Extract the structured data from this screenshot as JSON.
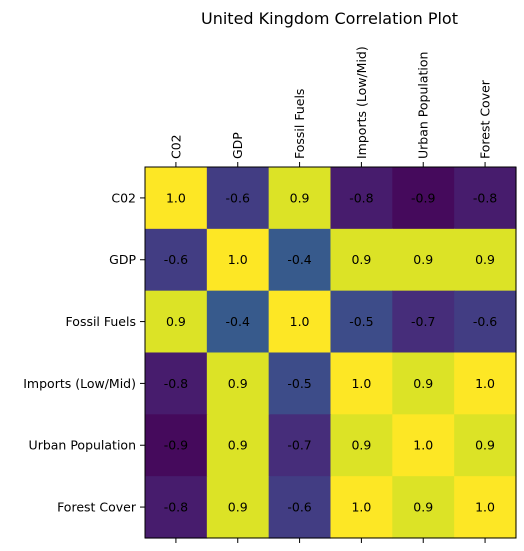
{
  "chart_data": {
    "type": "heatmap",
    "title": "United Kingdom Correlation Plot",
    "x_labels": [
      "C02",
      "GDP",
      "Fossil Fuels",
      "Imports (Low/Mid)",
      "Urban Population",
      "Forest Cover"
    ],
    "y_labels": [
      "C02",
      "GDP",
      "Fossil Fuels",
      "Imports (Low/Mid)",
      "Urban Population",
      "Forest Cover"
    ],
    "values": [
      [
        1.0,
        -0.6,
        0.9,
        -0.8,
        -0.9,
        -0.8
      ],
      [
        -0.6,
        1.0,
        -0.4,
        0.9,
        0.9,
        0.9
      ],
      [
        0.9,
        -0.4,
        1.0,
        -0.5,
        -0.7,
        -0.6
      ],
      [
        -0.8,
        0.9,
        -0.5,
        1.0,
        0.9,
        1.0
      ],
      [
        -0.9,
        0.9,
        -0.7,
        0.9,
        1.0,
        0.9
      ],
      [
        -0.8,
        0.9,
        -0.6,
        1.0,
        0.9,
        1.0
      ]
    ],
    "display_values": [
      [
        "1.0",
        "-0.6",
        "0.9",
        "-0.8",
        "-0.9",
        "-0.8"
      ],
      [
        "-0.6",
        "1.0",
        "-0.4",
        "0.9",
        "0.9",
        "0.9"
      ],
      [
        "0.9",
        "-0.4",
        "1.0",
        "-0.5",
        "-0.7",
        "-0.6"
      ],
      [
        "-0.8",
        "0.9",
        "-0.5",
        "1.0",
        "0.9",
        "1.0"
      ],
      [
        "-0.9",
        "0.9",
        "-0.7",
        "0.9",
        "1.0",
        "0.9"
      ],
      [
        "-0.8",
        "0.9",
        "-0.6",
        "1.0",
        "0.9",
        "1.0"
      ]
    ],
    "vmin": -0.95,
    "vmax": 1.0,
    "colormap": "viridis",
    "x_tick_position": "top",
    "grid": false,
    "legend": "none"
  }
}
